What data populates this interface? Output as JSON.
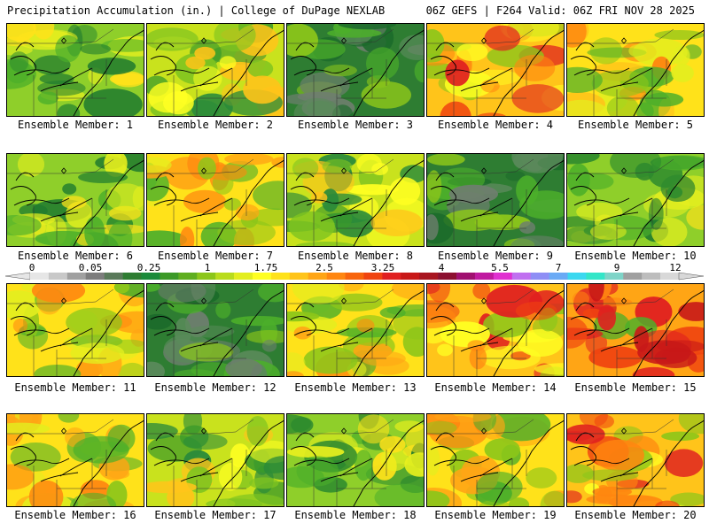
{
  "header": {
    "title": "Precipitation Accumulation (in.) | College of DuPage NEXLAB",
    "run_info": "06Z GEFS | F264 Valid: 06Z FRI NOV 28 2025"
  },
  "members": [
    {
      "label": "Ensemble Member: 1",
      "palette": "green-yellow"
    },
    {
      "label": "Ensemble Member: 2",
      "palette": "yellow-green"
    },
    {
      "label": "Ensemble Member: 3",
      "palette": "dark-green"
    },
    {
      "label": "Ensemble Member: 4",
      "palette": "red-orange"
    },
    {
      "label": "Ensemble Member: 5",
      "palette": "yellow-orange"
    },
    {
      "label": "Ensemble Member: 6",
      "palette": "green-yellow"
    },
    {
      "label": "Ensemble Member: 7",
      "palette": "orange-yellow"
    },
    {
      "label": "Ensemble Member: 8",
      "palette": "yellow-green"
    },
    {
      "label": "Ensemble Member: 9",
      "palette": "dark-green"
    },
    {
      "label": "Ensemble Member: 10",
      "palette": "green-yellow"
    },
    {
      "label": "Ensemble Member: 11",
      "palette": "orange-yellow"
    },
    {
      "label": "Ensemble Member: 12",
      "palette": "dark-green"
    },
    {
      "label": "Ensemble Member: 13",
      "palette": "orange-yellow"
    },
    {
      "label": "Ensemble Member: 14",
      "palette": "red-orange"
    },
    {
      "label": "Ensemble Member: 15",
      "palette": "red-heavy"
    },
    {
      "label": "Ensemble Member: 16",
      "palette": "orange-yellow"
    },
    {
      "label": "Ensemble Member: 17",
      "palette": "yellow-green"
    },
    {
      "label": "Ensemble Member: 18",
      "palette": "green-yellow"
    },
    {
      "label": "Ensemble Member: 19",
      "palette": "orange-yellow"
    },
    {
      "label": "Ensemble Member: 20",
      "palette": "red-orange"
    }
  ],
  "colorbar": {
    "tick_labels": [
      "0",
      "0.05",
      "0.25",
      "1",
      "1.75",
      "2.5",
      "3.25",
      "4",
      "5.5",
      "7",
      "9",
      "12"
    ],
    "colors": [
      "#e6e6e6",
      "#c8c8c8",
      "#a0a0a0",
      "#7d7d7d",
      "#5a7a5a",
      "#2e7d32",
      "#1b8a3a",
      "#3c9a28",
      "#5fae1f",
      "#8cc61a",
      "#b9dc1d",
      "#e3ee1f",
      "#ffff22",
      "#ffe21a",
      "#ffc41a",
      "#ffa515",
      "#ff8610",
      "#f8650c",
      "#f04410",
      "#e02020",
      "#c81818",
      "#a81520",
      "#8c1030",
      "#a01070",
      "#c01aa0",
      "#e030d0",
      "#c070f0",
      "#8e8ef5",
      "#6aaaf5",
      "#3bd8f0",
      "#33e6c8",
      "#7fd4c8",
      "#a0a0a0",
      "#bdbdbd",
      "#d8d8d8"
    ]
  }
}
